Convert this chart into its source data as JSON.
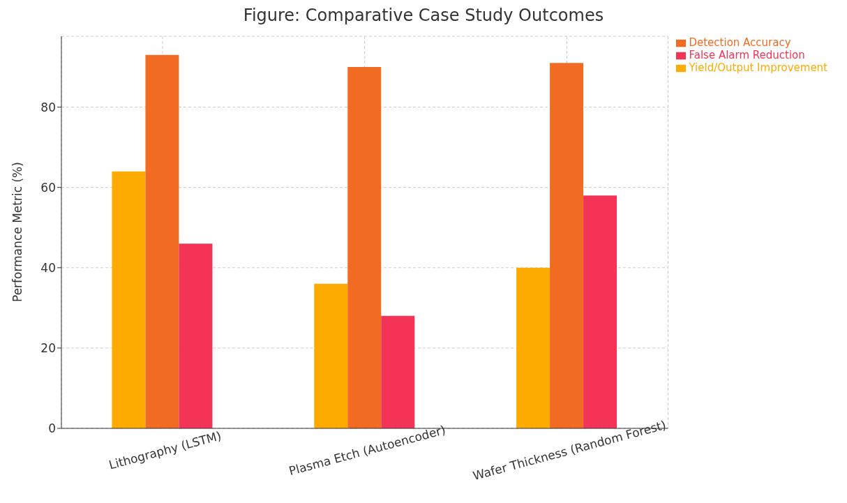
{
  "chart_data": {
    "type": "bar",
    "title": "Figure: Comparative Case Study Outcomes",
    "ylabel": "Performance Metric (%)",
    "categories": [
      "Lithography (LSTM)",
      "Plasma Etch (Autoencoder)",
      "Wafer Thickness (Random Forest)"
    ],
    "series": [
      {
        "name": "Yield/Output Improvement",
        "color": "#fdab00",
        "values": [
          64,
          36,
          40
        ]
      },
      {
        "name": "Detection Accuracy",
        "color": "#f26b22",
        "values": [
          93,
          90,
          91
        ]
      },
      {
        "name": "False Alarm Reduction",
        "color": "#f43456",
        "values": [
          46,
          28,
          58
        ]
      }
    ],
    "ylim": [
      0,
      97.65
    ],
    "yticks": [
      0,
      20,
      40,
      60,
      80
    ],
    "grid": true,
    "legend": "right"
  }
}
